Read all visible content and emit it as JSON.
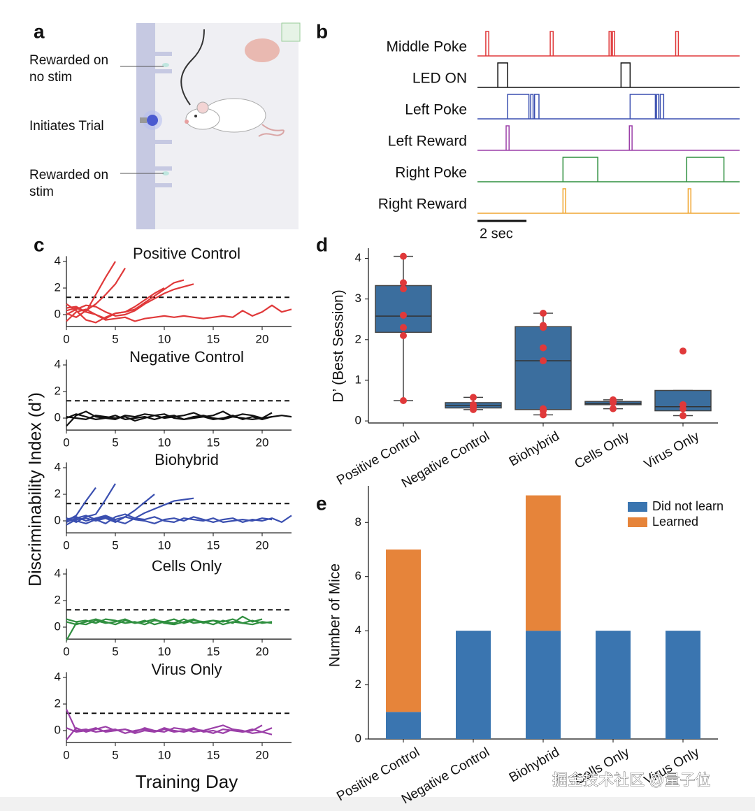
{
  "panel_labels": {
    "a": "a",
    "b": "b",
    "c": "c",
    "d": "d",
    "e": "e"
  },
  "diagram": {
    "labels": [
      [
        "Rewarded on",
        "no stim"
      ],
      [
        "Initiates Trial"
      ],
      [
        "Rewarded on",
        "stim"
      ]
    ]
  },
  "chart_data": [
    {
      "type": "timing",
      "xlim": [
        0,
        10.7
      ],
      "scalebar": {
        "value": 2,
        "label": "2 sec"
      },
      "series": [
        {
          "name": "Middle Poke",
          "color": "#e0393a",
          "pulses": [
            [
              0.34,
              0.46
            ],
            [
              2.97,
              3.09
            ],
            [
              5.37,
              5.46
            ],
            [
              5.51,
              5.6
            ],
            [
              8.09,
              8.2
            ]
          ]
        },
        {
          "name": "LED ON",
          "color": "#111111",
          "pulses": [
            [
              0.83,
              1.23
            ],
            [
              5.86,
              6.23
            ]
          ]
        },
        {
          "name": "Left Poke",
          "color": "#3a4fb0",
          "pulses": [
            [
              1.23,
              2.1
            ],
            [
              2.17,
              2.27
            ],
            [
              2.33,
              2.51
            ],
            [
              6.23,
              7.26
            ],
            [
              7.31,
              7.4
            ],
            [
              7.46,
              7.6
            ]
          ]
        },
        {
          "name": "Left Reward",
          "color": "#9b3fa8",
          "pulses": [
            [
              1.17,
              1.29
            ],
            [
              6.2,
              6.31
            ]
          ]
        },
        {
          "name": "Right Poke",
          "color": "#2f8f3f",
          "pulses": [
            [
              3.49,
              4.91
            ],
            [
              8.54,
              10.06
            ]
          ]
        },
        {
          "name": "Right Reward",
          "color": "#f0a630",
          "pulses": [
            [
              3.49,
              3.6
            ],
            [
              8.6,
              8.71
            ]
          ]
        }
      ]
    },
    {
      "type": "lines",
      "ylabel": "Discriminability Index (d’)",
      "xlabel": "Training Day",
      "threshold": 1.3,
      "xlim": [
        0,
        23
      ],
      "xticks": [
        0,
        5,
        10,
        15,
        20
      ],
      "ylim": [
        -0.9,
        4.4
      ],
      "yticks": [
        0,
        2,
        4
      ],
      "x": [
        0,
        1,
        2,
        3,
        4,
        5,
        6,
        7,
        8,
        9,
        10,
        11,
        12,
        13,
        14,
        15,
        16,
        17,
        18,
        19,
        20,
        21,
        22,
        23
      ],
      "panels": [
        {
          "title": "Positive Control",
          "color": "#e0393a",
          "series": [
            {
              "values": [
                0.3,
                0.5,
                0.2,
                1.5,
                2.8,
                4.0,
                null,
                null,
                null,
                null,
                null,
                null,
                null,
                null,
                null,
                null,
                null,
                null,
                null,
                null,
                null,
                null,
                null,
                null
              ]
            },
            {
              "values": [
                0.1,
                -0.2,
                0.3,
                0.8,
                1.5,
                2.3,
                3.5,
                null,
                null,
                null,
                null,
                null,
                null,
                null,
                null,
                null,
                null,
                null,
                null,
                null,
                null,
                null,
                null,
                null
              ]
            },
            {
              "values": [
                0.5,
                0.6,
                0.2,
                0,
                -0.3,
                0.1,
                0.2,
                0.4,
                0.9,
                1.4,
                1.9,
                2.4,
                2.6,
                null,
                null,
                null,
                null,
                null,
                null,
                null,
                null,
                null,
                null,
                null
              ]
            },
            {
              "values": [
                0,
                0.4,
                0.7,
                0.6,
                0.2,
                -0.1,
                0,
                0.3,
                0.8,
                1.2,
                1.6,
                1.9,
                2.1,
                2.3,
                null,
                null,
                null,
                null,
                null,
                null,
                null,
                null,
                null,
                null
              ]
            },
            {
              "values": [
                -0.5,
                0.2,
                0.4,
                0,
                -0.4,
                -0.3,
                -0.2,
                -0.5,
                -0.3,
                -0.2,
                -0.1,
                -0.2,
                -0.1,
                -0.2,
                -0.3,
                -0.2,
                -0.1,
                -0.2,
                0.3,
                -0.1,
                0.2,
                0.7,
                0.2,
                0.4
              ]
            },
            {
              "values": [
                0.8,
                0.3,
                -0.4,
                -0.6,
                -0.2,
                0.1,
                0.2,
                0.6,
                1.1,
                1.6,
                2.0,
                null,
                null,
                null,
                null,
                null,
                null,
                null,
                null,
                null,
                null,
                null,
                null,
                null
              ]
            }
          ]
        },
        {
          "title": "Negative Control",
          "color": "#111111",
          "series": [
            {
              "values": [
                -0.6,
                0.2,
                0.5,
                0.1,
                0,
                -0.1,
                0.2,
                0.1,
                0.3,
                0.2,
                0,
                0.1,
                0.2,
                0.4,
                0.1,
                0.2,
                0.5,
                0.1,
                0.3,
                0.2,
                0,
                0.1,
                0.2,
                0.1
              ]
            },
            {
              "values": [
                0.1,
                0,
                -0.1,
                0.2,
                0.1,
                0,
                0.1,
                -0.2,
                0,
                0.2,
                0.3,
                0,
                -0.1,
                0.1,
                0.2,
                0,
                -0.1,
                0.1,
                0,
                -0.1,
                0,
                0.4,
                null,
                null
              ]
            },
            {
              "values": [
                0,
                0.3,
                0.1,
                -0.1,
                0,
                0.2,
                -0.1,
                0,
                0.1,
                -0.1,
                0.1,
                0.2,
                -0.1,
                0,
                0.1,
                -0.1,
                0,
                0.2,
                -0.1,
                0.1,
                -0.1,
                0.1,
                null,
                null
              ]
            }
          ]
        },
        {
          "title": "Biohybrid",
          "color": "#3a4fb0",
          "series": [
            {
              "values": [
                0,
                0.4,
                1.5,
                2.5,
                null,
                null,
                null,
                null,
                null,
                null,
                null,
                null,
                null,
                null,
                null,
                null,
                null,
                null,
                null,
                null,
                null,
                null,
                null,
                null
              ]
            },
            {
              "values": [
                0.2,
                -0.1,
                0.3,
                0.5,
                1.6,
                2.8,
                null,
                null,
                null,
                null,
                null,
                null,
                null,
                null,
                null,
                null,
                null,
                null,
                null,
                null,
                null,
                null,
                null,
                null
              ]
            },
            {
              "values": [
                0.1,
                0.3,
                0,
                0.2,
                0.4,
                0.1,
                0.3,
                0.8,
                1.4,
                2.0,
                null,
                null,
                null,
                null,
                null,
                null,
                null,
                null,
                null,
                null,
                null,
                null,
                null,
                null
              ]
            },
            {
              "values": [
                -0.1,
                0.2,
                0.4,
                0.1,
                -0.2,
                0.3,
                0.5,
                0.2,
                0.6,
                0.9,
                1.2,
                1.5,
                1.6,
                1.7,
                null,
                null,
                null,
                null,
                null,
                null,
                null,
                null,
                null,
                null
              ]
            },
            {
              "values": [
                -0.3,
                0.1,
                0.2,
                0,
                0.2,
                -0.1,
                0.3,
                0.1,
                0,
                -0.2,
                0.1,
                0.2,
                0,
                0.3,
                0.1,
                -0.1,
                0.1,
                0.2,
                -0.1,
                0.1,
                0,
                0.2,
                -0.1,
                0.4
              ]
            },
            {
              "values": [
                0.2,
                0,
                -0.2,
                0.1,
                0.3,
                0,
                -0.2,
                0.2,
                0.1,
                0.3,
                0,
                -0.1,
                0.2,
                0.1,
                0,
                0.2,
                -0.1,
                0,
                0.1,
                0,
                0.2,
                0.1,
                null,
                null
              ]
            }
          ]
        },
        {
          "title": "Cells Only",
          "color": "#2f8f3f",
          "series": [
            {
              "values": [
                -1,
                0.3,
                0.2,
                0.5,
                0.3,
                0.4,
                0.6,
                0.3,
                0.5,
                0.2,
                0.4,
                0.3,
                0.6,
                0.3,
                0.4,
                0.5,
                0.2,
                0.4,
                0.3,
                0.5,
                0.3,
                0.4,
                null,
                null
              ]
            },
            {
              "values": [
                0.6,
                0.4,
                0.5,
                0.3,
                0.6,
                0.5,
                0.3,
                0.4,
                0.2,
                0.5,
                0.4,
                0.6,
                0.3,
                0.5,
                0.4,
                0.2,
                0.5,
                0.3,
                0.8,
                0.4,
                0.6,
                null,
                null,
                null
              ]
            },
            {
              "values": [
                0.4,
                0.2,
                0.4,
                0.6,
                0.4,
                0.2,
                0.5,
                0.3,
                0.4,
                0.6,
                0.3,
                0.2,
                0.4,
                0.6,
                0.3,
                0.5,
                0.4,
                0.6,
                0.3,
                0.2,
                0.4,
                0.3,
                null,
                null
              ]
            }
          ]
        },
        {
          "title": "Virus Only",
          "color": "#9b3fa8",
          "series": [
            {
              "values": [
                1.6,
                0,
                0.1,
                -0.1,
                0,
                0.1,
                -0.2,
                0,
                0.1,
                -0.1,
                0.2,
                0,
                -0.1,
                0.1,
                0,
                -0.2,
                0.1,
                0,
                -0.1,
                0.1,
                -0.1,
                0.2,
                null,
                null
              ]
            },
            {
              "values": [
                -0.7,
                0.2,
                -0.1,
                0.1,
                0.3,
                0,
                0.1,
                -0.1,
                0.2,
                0,
                -0.1,
                0.2,
                0.1,
                -0.1,
                0,
                0.2,
                0.4,
                0.1,
                -0.1,
                0,
                0.4,
                null,
                null,
                null
              ]
            },
            {
              "values": [
                0.2,
                -0.1,
                0,
                0.2,
                -0.1,
                0,
                0.1,
                -0.2,
                0,
                -0.1,
                0.1,
                -0.1,
                0,
                0.2,
                -0.1,
                0,
                -0.2,
                0.1,
                0,
                -0.2,
                -0.1,
                -0.3,
                null,
                null
              ]
            }
          ]
        }
      ]
    },
    {
      "type": "box",
      "ylabel": "D’ (Best Session)",
      "color": "#3b6e9e",
      "point_color": "#e0393a",
      "categories": [
        "Positive Control",
        "Negative Control",
        "Biohybrid",
        "Cells Only",
        "Virus Only"
      ],
      "ylim": [
        -0.05,
        4.25
      ],
      "yticks": [
        0,
        1,
        2,
        3,
        4
      ],
      "boxes": [
        {
          "min": 0.5,
          "q1": 2.18,
          "median": 2.58,
          "q3": 3.33,
          "max": 4.05,
          "points": [
            4.05,
            3.4,
            3.25,
            2.6,
            2.3,
            2.1,
            0.5
          ]
        },
        {
          "min": 0.28,
          "q1": 0.32,
          "median": 0.38,
          "q3": 0.45,
          "max": 0.58,
          "points": [
            0.58,
            0.4,
            0.35,
            0.28
          ]
        },
        {
          "min": 0.15,
          "q1": 0.28,
          "median": 1.48,
          "q3": 2.32,
          "max": 2.65,
          "points": [
            2.65,
            2.35,
            2.3,
            1.8,
            1.48,
            0.3,
            0.28,
            0.25,
            0.15
          ]
        },
        {
          "min": 0.3,
          "q1": 0.4,
          "median": 0.43,
          "q3": 0.48,
          "max": 0.52,
          "points": [
            0.52,
            0.48,
            0.45,
            0.3
          ]
        },
        {
          "min": 0.13,
          "q1": 0.25,
          "median": 0.35,
          "q3": 0.75,
          "max": 0.75,
          "points": [
            1.72,
            0.4,
            0.3,
            0.13
          ]
        }
      ]
    },
    {
      "type": "stacked",
      "ylabel": "Number of Mice",
      "legend": "upper right",
      "categories": [
        "Positive Control",
        "Negative Control",
        "Biohybrid",
        "Cells Only",
        "Virus Only"
      ],
      "ylim": [
        0,
        9.35
      ],
      "yticks": [
        0,
        2,
        4,
        6,
        8
      ],
      "series": [
        {
          "name": "Did not learn",
          "color": "#3a75b0",
          "values": [
            1,
            4,
            4,
            4,
            4
          ]
        },
        {
          "name": "Learned",
          "color": "#e6843a",
          "values": [
            6,
            0,
            5,
            0,
            0
          ]
        }
      ]
    }
  ],
  "watermark": "掘金技术社区 @量子位"
}
